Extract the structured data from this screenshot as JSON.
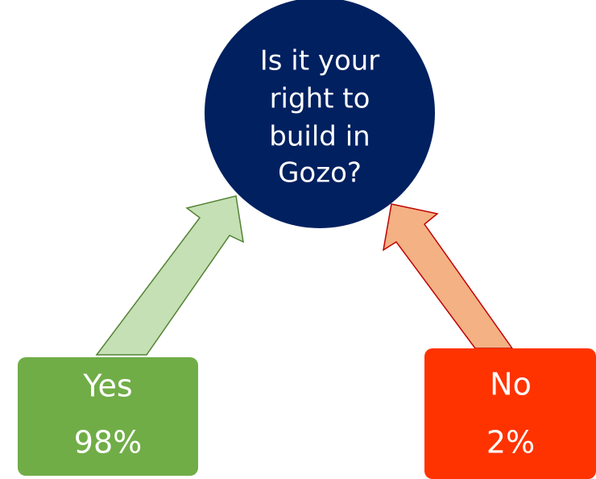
{
  "question": {
    "lines": [
      "Is it your",
      "right to",
      "build in",
      "Gozo?"
    ]
  },
  "options": [
    {
      "label": "Yes",
      "value": "98%"
    },
    {
      "label": "No",
      "value": "2%"
    }
  ]
}
